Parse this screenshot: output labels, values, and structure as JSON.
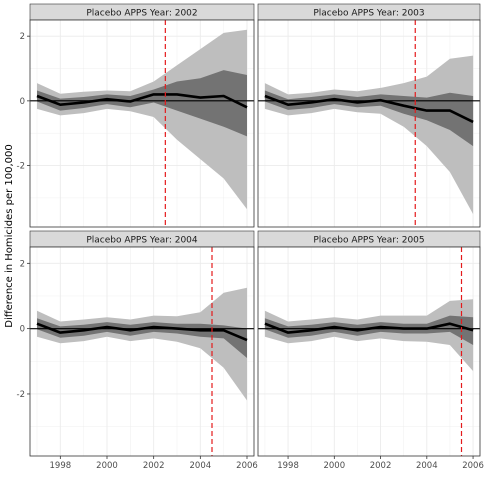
{
  "figure": {
    "ylabel": "Difference in Homicides per 100,000",
    "xlim": [
      1996.7,
      2006.3
    ],
    "ylim": [
      -3.9,
      2.5
    ],
    "x_ticks": [
      1998,
      2000,
      2002,
      2004,
      2006
    ],
    "y_ticks": [
      -2,
      0,
      2
    ],
    "colors": {
      "outer_band": "#bebebe",
      "inner_band": "#737373",
      "line": "#000000",
      "vline": "#e41a1c",
      "zero_line": "#000000",
      "strip_fill": "#d9d9d9",
      "grid": "#ebebeb"
    }
  },
  "chart_data": [
    {
      "type": "area",
      "title": "Placebo APPS Year: 2002",
      "vline": 2002.5,
      "x": [
        1997,
        1998,
        1999,
        2000,
        2001,
        2002,
        2003,
        2004,
        2005,
        2006
      ],
      "series": [
        {
          "values": [
            0.15,
            -0.12,
            -0.05,
            0.05,
            -0.02,
            0.2,
            0.2,
            0.1,
            0.15,
            -0.2
          ]
        },
        {
          "values": [
            0.55,
            0.22,
            0.28,
            0.32,
            0.3,
            0.6,
            1.1,
            1.6,
            2.1,
            2.2
          ]
        },
        {
          "values": [
            -0.25,
            -0.45,
            -0.38,
            -0.25,
            -0.32,
            -0.5,
            -1.2,
            -1.8,
            -2.4,
            -3.35
          ]
        },
        {
          "values": [
            0.32,
            0.07,
            0.12,
            0.2,
            0.15,
            0.35,
            0.6,
            0.7,
            0.95,
            0.8
          ]
        },
        {
          "values": [
            -0.02,
            -0.3,
            -0.22,
            -0.1,
            -0.2,
            -0.05,
            -0.3,
            -0.55,
            -0.8,
            -1.1
          ]
        }
      ]
    },
    {
      "type": "area",
      "title": "Placebo APPS Year: 2003",
      "vline": 2003.5,
      "x": [
        1997,
        1998,
        1999,
        2000,
        2001,
        2002,
        2003,
        2004,
        2005,
        2006
      ],
      "series": [
        {
          "values": [
            0.15,
            -0.12,
            -0.05,
            0.05,
            -0.05,
            0.02,
            -0.15,
            -0.3,
            -0.3,
            -0.65
          ]
        },
        {
          "values": [
            0.55,
            0.2,
            0.25,
            0.35,
            0.3,
            0.4,
            0.55,
            0.75,
            1.3,
            1.4
          ]
        },
        {
          "values": [
            -0.25,
            -0.45,
            -0.38,
            -0.25,
            -0.35,
            -0.4,
            -0.8,
            -1.4,
            -2.2,
            -3.5
          ]
        },
        {
          "values": [
            0.32,
            0.05,
            0.12,
            0.2,
            0.12,
            0.2,
            0.15,
            0.1,
            0.25,
            0.15
          ]
        },
        {
          "values": [
            -0.02,
            -0.28,
            -0.22,
            -0.1,
            -0.2,
            -0.15,
            -0.4,
            -0.6,
            -0.9,
            -1.4
          ]
        }
      ]
    },
    {
      "type": "area",
      "title": "Placebo APPS Year: 2004",
      "vline": 2004.5,
      "x": [
        1997,
        1998,
        1999,
        2000,
        2001,
        2002,
        2003,
        2004,
        2005,
        2006
      ],
      "series": [
        {
          "values": [
            0.15,
            -0.12,
            -0.05,
            0.05,
            -0.05,
            0.05,
            0.0,
            -0.05,
            -0.05,
            -0.35
          ]
        },
        {
          "values": [
            0.55,
            0.22,
            0.28,
            0.35,
            0.28,
            0.4,
            0.38,
            0.5,
            1.1,
            1.25
          ]
        },
        {
          "values": [
            -0.25,
            -0.45,
            -0.38,
            -0.25,
            -0.38,
            -0.3,
            -0.4,
            -0.6,
            -1.2,
            -2.2
          ]
        },
        {
          "values": [
            0.32,
            0.07,
            0.12,
            0.2,
            0.12,
            0.2,
            0.15,
            0.15,
            0.1,
            0.0
          ]
        },
        {
          "values": [
            -0.02,
            -0.28,
            -0.22,
            -0.1,
            -0.22,
            -0.1,
            -0.15,
            -0.25,
            -0.3,
            -0.9
          ]
        }
      ]
    },
    {
      "type": "area",
      "title": "Placebo APPS Year: 2005",
      "vline": 2005.5,
      "x": [
        1997,
        1998,
        1999,
        2000,
        2001,
        2002,
        2003,
        2004,
        2005,
        2006
      ],
      "series": [
        {
          "values": [
            0.15,
            -0.12,
            -0.05,
            0.05,
            -0.05,
            0.05,
            0.0,
            0.0,
            0.15,
            -0.05
          ]
        },
        {
          "values": [
            0.55,
            0.22,
            0.28,
            0.35,
            0.28,
            0.4,
            0.4,
            0.4,
            0.85,
            0.9
          ]
        },
        {
          "values": [
            -0.25,
            -0.45,
            -0.38,
            -0.25,
            -0.38,
            -0.3,
            -0.38,
            -0.4,
            -0.5,
            -1.3
          ]
        },
        {
          "values": [
            0.32,
            0.07,
            0.12,
            0.2,
            0.12,
            0.2,
            0.15,
            0.15,
            0.4,
            0.35
          ]
        },
        {
          "values": [
            -0.02,
            -0.28,
            -0.22,
            -0.1,
            -0.22,
            -0.1,
            -0.15,
            -0.15,
            -0.1,
            -0.5
          ]
        }
      ]
    }
  ]
}
